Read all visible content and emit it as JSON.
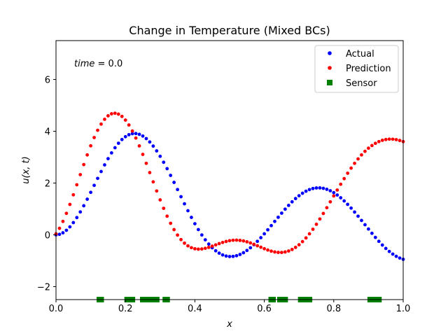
{
  "chart_data": {
    "type": "scatter",
    "title": "Change in Temperature (Mixed BCs)",
    "xlabel": "x",
    "ylabel": "u(x, t)",
    "xlim": [
      0.0,
      1.0
    ],
    "ylim": [
      -2.5,
      7.5
    ],
    "xticks": [
      0.0,
      0.2,
      0.4,
      0.6,
      0.8,
      1.0
    ],
    "xtick_labels": [
      "0.0",
      "0.2",
      "0.4",
      "0.6",
      "0.8",
      "1.0"
    ],
    "yticks": [
      -2,
      0,
      2,
      4,
      6
    ],
    "ytick_labels": [
      "−2",
      "0",
      "2",
      "4",
      "6"
    ],
    "grid": false,
    "legend_position": "upper right",
    "annotation": {
      "label": "time",
      "value": "0.0"
    },
    "series": [
      {
        "name": "Actual",
        "marker": "circle",
        "color": "#0000ff",
        "x": [
          0.0,
          0.01,
          0.02,
          0.03,
          0.04,
          0.05,
          0.06,
          0.07,
          0.08,
          0.09,
          0.1,
          0.11,
          0.12,
          0.13,
          0.14,
          0.15,
          0.16,
          0.17,
          0.18,
          0.19,
          0.2,
          0.21,
          0.22,
          0.23,
          0.24,
          0.25,
          0.26,
          0.27,
          0.28,
          0.29,
          0.3,
          0.31,
          0.32,
          0.33,
          0.34,
          0.35,
          0.36,
          0.37,
          0.38,
          0.39,
          0.4,
          0.41,
          0.42,
          0.43,
          0.44,
          0.45,
          0.46,
          0.47,
          0.48,
          0.49,
          0.5,
          0.51,
          0.52,
          0.53,
          0.54,
          0.55,
          0.56,
          0.57,
          0.58,
          0.59,
          0.6,
          0.61,
          0.62,
          0.63,
          0.64,
          0.65,
          0.66,
          0.67,
          0.68,
          0.69,
          0.7,
          0.71,
          0.72,
          0.73,
          0.74,
          0.75,
          0.76,
          0.77,
          0.78,
          0.79,
          0.8,
          0.81,
          0.82,
          0.83,
          0.84,
          0.85,
          0.86,
          0.87,
          0.88,
          0.89,
          0.9,
          0.91,
          0.92,
          0.93,
          0.94,
          0.95,
          0.96,
          0.97,
          0.98,
          0.99,
          1.0
        ],
        "y": [
          0.0,
          0.02,
          0.079,
          0.176,
          0.308,
          0.473,
          0.667,
          0.885,
          1.123,
          1.377,
          1.641,
          1.91,
          2.18,
          2.445,
          2.701,
          2.942,
          3.164,
          3.364,
          3.537,
          3.68,
          3.79,
          3.866,
          3.906,
          3.911,
          3.88,
          3.815,
          3.716,
          3.586,
          3.427,
          3.242,
          3.033,
          2.803,
          2.556,
          2.296,
          2.025,
          1.75,
          1.473,
          1.199,
          0.932,
          0.674,
          0.43,
          0.203,
          -0.005,
          -0.192,
          -0.357,
          -0.498,
          -0.615,
          -0.707,
          -0.775,
          -0.818,
          -0.837,
          -0.832,
          -0.806,
          -0.757,
          -0.689,
          -0.602,
          -0.499,
          -0.381,
          -0.25,
          -0.109,
          0.04,
          0.196,
          0.356,
          0.518,
          0.679,
          0.838,
          0.992,
          1.138,
          1.275,
          1.4,
          1.511,
          1.607,
          1.686,
          1.747,
          1.789,
          1.811,
          1.813,
          1.796,
          1.759,
          1.703,
          1.629,
          1.538,
          1.431,
          1.31,
          1.177,
          1.033,
          0.88,
          0.72,
          0.556,
          0.39,
          0.224,
          0.06,
          -0.099,
          -0.251,
          -0.393,
          -0.524,
          -0.641,
          -0.743,
          -0.828,
          -0.895,
          -0.943
        ]
      },
      {
        "name": "Prediction",
        "marker": "circle",
        "color": "#ff0000",
        "x": [
          0.0,
          0.01,
          0.02,
          0.03,
          0.04,
          0.05,
          0.06,
          0.07,
          0.08,
          0.09,
          0.1,
          0.11,
          0.12,
          0.13,
          0.14,
          0.15,
          0.16,
          0.17,
          0.18,
          0.19,
          0.2,
          0.21,
          0.22,
          0.23,
          0.24,
          0.25,
          0.26,
          0.27,
          0.28,
          0.29,
          0.3,
          0.31,
          0.32,
          0.33,
          0.34,
          0.35,
          0.36,
          0.37,
          0.38,
          0.39,
          0.4,
          0.41,
          0.42,
          0.43,
          0.44,
          0.45,
          0.46,
          0.47,
          0.48,
          0.49,
          0.5,
          0.51,
          0.52,
          0.53,
          0.54,
          0.55,
          0.56,
          0.57,
          0.58,
          0.59,
          0.6,
          0.61,
          0.62,
          0.63,
          0.64,
          0.65,
          0.66,
          0.67,
          0.68,
          0.69,
          0.7,
          0.71,
          0.72,
          0.73,
          0.74,
          0.75,
          0.76,
          0.77,
          0.78,
          0.79,
          0.8,
          0.81,
          0.82,
          0.83,
          0.84,
          0.85,
          0.86,
          0.87,
          0.88,
          0.89,
          0.9,
          0.91,
          0.92,
          0.93,
          0.94,
          0.95,
          0.96,
          0.97,
          0.98,
          0.99,
          1.0
        ],
        "y": [
          0.04,
          0.252,
          0.518,
          0.829,
          1.175,
          1.546,
          1.933,
          2.325,
          2.713,
          3.086,
          3.437,
          3.757,
          4.038,
          4.275,
          4.462,
          4.596,
          4.674,
          4.696,
          4.661,
          4.572,
          4.431,
          4.241,
          4.008,
          3.737,
          3.434,
          3.106,
          2.761,
          2.405,
          2.047,
          1.693,
          1.35,
          1.024,
          0.721,
          0.446,
          0.202,
          -0.008,
          -0.183,
          -0.321,
          -0.425,
          -0.496,
          -0.537,
          -0.552,
          -0.545,
          -0.52,
          -0.483,
          -0.437,
          -0.388,
          -0.338,
          -0.293,
          -0.255,
          -0.226,
          -0.209,
          -0.205,
          -0.214,
          -0.235,
          -0.269,
          -0.312,
          -0.364,
          -0.42,
          -0.478,
          -0.535,
          -0.586,
          -0.629,
          -0.661,
          -0.678,
          -0.679,
          -0.661,
          -0.623,
          -0.564,
          -0.484,
          -0.383,
          -0.261,
          -0.12,
          0.04,
          0.216,
          0.408,
          0.612,
          0.826,
          1.048,
          1.274,
          1.503,
          1.73,
          1.953,
          2.17,
          2.379,
          2.576,
          2.761,
          2.932,
          3.087,
          3.225,
          3.346,
          3.449,
          3.534,
          3.601,
          3.65,
          3.681,
          3.695,
          3.693,
          3.676,
          3.644,
          3.6
        ]
      },
      {
        "name": "Sensor",
        "marker": "square",
        "color": "#008000",
        "x": [
          0.125,
          0.13,
          0.205,
          0.21,
          0.215,
          0.22,
          0.25,
          0.255,
          0.265,
          0.27,
          0.28,
          0.29,
          0.315,
          0.32,
          0.62,
          0.625,
          0.645,
          0.65,
          0.655,
          0.66,
          0.705,
          0.71,
          0.725,
          0.73,
          0.905,
          0.91,
          0.915,
          0.92,
          0.925,
          0.93
        ],
        "y": [
          -2.5,
          -2.5,
          -2.5,
          -2.5,
          -2.5,
          -2.5,
          -2.5,
          -2.5,
          -2.5,
          -2.5,
          -2.5,
          -2.5,
          -2.5,
          -2.5,
          -2.5,
          -2.5,
          -2.5,
          -2.5,
          -2.5,
          -2.5,
          -2.5,
          -2.5,
          -2.5,
          -2.5,
          -2.5,
          -2.5,
          -2.5,
          -2.5,
          -2.5,
          -2.5
        ]
      }
    ]
  }
}
